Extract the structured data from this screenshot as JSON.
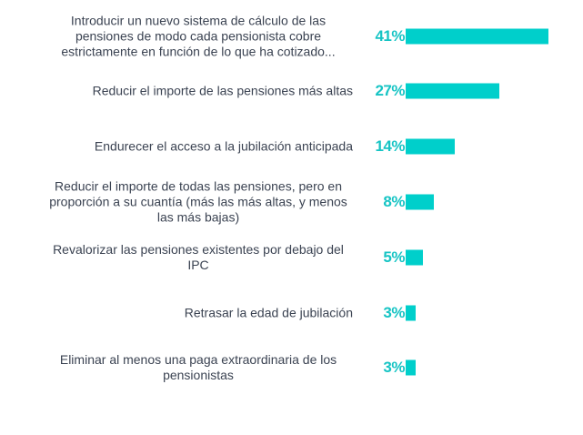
{
  "chart_data": {
    "type": "bar",
    "orientation": "horizontal",
    "categories": [
      "Introducir un nuevo sistema de cálculo de las pensiones de modo cada pensionista cobre estrictamente en función de lo que ha cotizado...",
      "Reducir el importe de las pensiones más altas",
      "Endurecer el acceso a la jubilación anticipada",
      "Reducir el importe de todas las pensiones, pero en proporción a su cuantía (más las más altas, y menos las más bajas)",
      "Revalorizar las pensiones existentes por debajo del IPC",
      "Retrasar la edad de jubilación",
      "Eliminar al menos una paga extraordinaria de los pensionistas"
    ],
    "values": [
      41,
      27,
      14,
      8,
      5,
      3,
      3
    ],
    "data_labels": [
      "41%",
      "27%",
      "14%",
      "8%",
      "5%",
      "3%",
      "3%"
    ],
    "unit": "%",
    "xlim": [
      0,
      41
    ],
    "grid": false,
    "bar_color": "#00cfcb",
    "label_color": "#16c4c4",
    "title": "",
    "xlabel": "",
    "ylabel": ""
  }
}
